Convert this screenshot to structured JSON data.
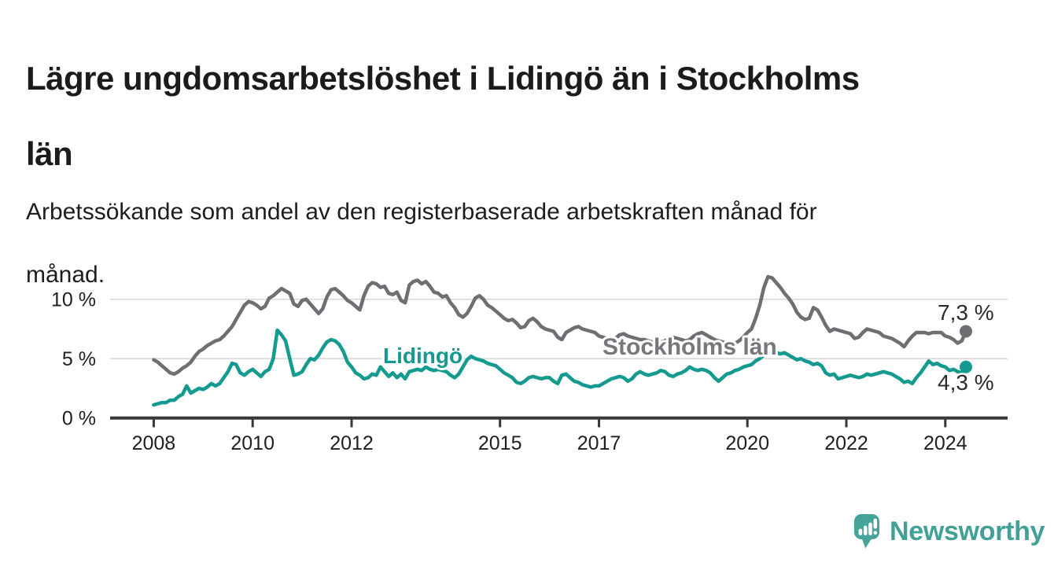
{
  "header": {
    "title_lines": [
      "Lägre ungdomsarbetslöshet i Lidingö än i Stockholms",
      "län"
    ],
    "subtitle_lines": [
      "Arbetssökande som andel av den registerbaserade arbetskraften månad för",
      "månad."
    ]
  },
  "colors": {
    "title": "#1b1b1b",
    "axis": "#383838",
    "gridline": "#d9d9d9",
    "tick_label": "#1f1f1f",
    "stockholm_line": "#6e6e73",
    "lidingo_line": "#149a8f",
    "end_label_text": "#2b2b2b",
    "logo_teal": "#46a39a"
  },
  "chart_data": {
    "type": "line",
    "x_unit": "month",
    "x_start": "2008-01",
    "x_end": "2024-06",
    "grid": "horizontal",
    "ylim": [
      0,
      12.5
    ],
    "x_ticks": [
      "2008",
      "2010",
      "2012",
      "2015",
      "2017",
      "2020",
      "2022",
      "2024"
    ],
    "y_ticks": [
      {
        "value": 0,
        "label": "0 %"
      },
      {
        "value": 5,
        "label": "5 %"
      },
      {
        "value": 10,
        "label": "10 %"
      }
    ],
    "series": [
      {
        "name": "Stockholms län",
        "color": "#6e6e73",
        "end_label": "7,3 %",
        "end_value": 7.3,
        "values": [
          4.9,
          4.7,
          4.4,
          4.1,
          3.8,
          3.7,
          3.9,
          4.2,
          4.4,
          4.7,
          5.2,
          5.6,
          5.8,
          6.1,
          6.3,
          6.5,
          6.6,
          6.9,
          7.3,
          7.7,
          8.3,
          8.9,
          9.5,
          9.8,
          9.7,
          9.5,
          9.2,
          9.4,
          10.1,
          10.3,
          10.6,
          10.9,
          10.7,
          10.5,
          9.6,
          9.4,
          9.9,
          10.0,
          9.6,
          9.2,
          8.8,
          9.2,
          10.2,
          10.8,
          10.9,
          10.6,
          10.3,
          9.9,
          9.7,
          9.4,
          9.1,
          10.3,
          11.1,
          11.4,
          11.3,
          11.0,
          11.1,
          10.5,
          10.4,
          10.6,
          9.9,
          9.7,
          11.2,
          11.5,
          11.6,
          11.3,
          11.5,
          11.1,
          10.6,
          10.5,
          10.2,
          10.3,
          9.7,
          9.3,
          8.7,
          8.5,
          8.8,
          9.4,
          10.1,
          10.3,
          10.0,
          9.5,
          9.3,
          9.0,
          8.7,
          8.4,
          8.2,
          8.3,
          8.0,
          7.6,
          7.7,
          8.2,
          8.4,
          8.1,
          7.7,
          7.5,
          7.4,
          7.3,
          6.8,
          6.6,
          7.2,
          7.4,
          7.6,
          7.7,
          7.5,
          7.4,
          7.3,
          7.2,
          6.9,
          6.8,
          6.7,
          6.6,
          6.7,
          7.0,
          7.1,
          6.9,
          6.8,
          6.7,
          6.6,
          6.6,
          6.5,
          6.4,
          6.3,
          6.4,
          6.5,
          6.7,
          6.8,
          6.7,
          6.6,
          6.5,
          6.6,
          6.9,
          7.1,
          7.2,
          7.0,
          6.8,
          6.6,
          6.5,
          6.4,
          6.3,
          6.2,
          6.3,
          6.5,
          6.8,
          7.2,
          7.5,
          8.4,
          9.5,
          11.0,
          11.9,
          11.8,
          11.4,
          11.0,
          10.5,
          10.1,
          9.6,
          8.9,
          8.5,
          8.3,
          8.4,
          9.3,
          9.1,
          8.5,
          7.8,
          7.3,
          7.5,
          7.4,
          7.3,
          7.2,
          7.1,
          6.7,
          6.8,
          7.2,
          7.5,
          7.4,
          7.3,
          7.2,
          6.9,
          6.8,
          6.7,
          6.5,
          6.3,
          6.0,
          6.5,
          6.9,
          7.2,
          7.2,
          7.2,
          7.1,
          7.2,
          7.2,
          7.2,
          6.9,
          6.8,
          6.6,
          6.3,
          6.5,
          7.3
        ]
      },
      {
        "name": "Lidingö",
        "color": "#149a8f",
        "end_label": "4,3 %",
        "end_value": 4.3,
        "values": [
          1.1,
          1.2,
          1.3,
          1.3,
          1.5,
          1.5,
          1.8,
          2.0,
          2.7,
          2.1,
          2.3,
          2.5,
          2.4,
          2.6,
          2.9,
          2.7,
          2.9,
          3.4,
          3.9,
          4.6,
          4.5,
          3.8,
          3.6,
          3.9,
          4.1,
          3.8,
          3.5,
          3.9,
          4.1,
          5.0,
          7.4,
          7.0,
          6.5,
          5.0,
          3.6,
          3.7,
          3.9,
          4.5,
          5.0,
          4.9,
          5.3,
          5.9,
          6.4,
          6.6,
          6.5,
          6.2,
          5.6,
          4.7,
          4.3,
          3.8,
          3.6,
          3.3,
          3.4,
          3.7,
          3.6,
          4.3,
          3.9,
          3.5,
          3.8,
          3.4,
          3.7,
          3.3,
          3.9,
          4.0,
          4.1,
          4.0,
          4.3,
          4.1,
          4.0,
          4.1,
          4.0,
          3.9,
          3.6,
          3.4,
          3.7,
          4.3,
          4.9,
          5.2,
          5.0,
          4.9,
          4.8,
          4.6,
          4.5,
          4.4,
          4.1,
          3.8,
          3.6,
          3.4,
          3.0,
          2.9,
          3.1,
          3.4,
          3.5,
          3.4,
          3.3,
          3.4,
          3.4,
          3.1,
          2.9,
          3.6,
          3.7,
          3.4,
          3.1,
          3.0,
          2.8,
          2.7,
          2.6,
          2.7,
          2.7,
          2.9,
          3.1,
          3.3,
          3.4,
          3.5,
          3.4,
          3.1,
          3.3,
          3.7,
          3.9,
          3.7,
          3.6,
          3.7,
          3.8,
          4.0,
          3.9,
          3.6,
          3.5,
          3.7,
          3.8,
          4.0,
          4.3,
          4.1,
          4.0,
          4.1,
          4.0,
          3.8,
          3.4,
          3.1,
          3.4,
          3.7,
          3.8,
          4.0,
          4.1,
          4.3,
          4.4,
          4.5,
          4.8,
          5.0,
          5.3,
          5.5,
          5.6,
          5.5,
          5.4,
          5.5,
          5.3,
          5.1,
          4.9,
          5.0,
          4.8,
          4.7,
          4.5,
          4.6,
          4.4,
          3.8,
          3.6,
          3.7,
          3.3,
          3.4,
          3.5,
          3.6,
          3.5,
          3.4,
          3.5,
          3.7,
          3.6,
          3.7,
          3.8,
          3.9,
          3.8,
          3.7,
          3.5,
          3.3,
          3.0,
          3.1,
          2.9,
          3.4,
          3.8,
          4.3,
          4.8,
          4.5,
          4.6,
          4.4,
          4.3,
          4.0,
          4.1,
          3.9,
          3.8,
          4.3
        ]
      }
    ]
  },
  "logo": {
    "text": "Newsworthy",
    "icon": "bar-chart-speech-bubble-icon"
  }
}
